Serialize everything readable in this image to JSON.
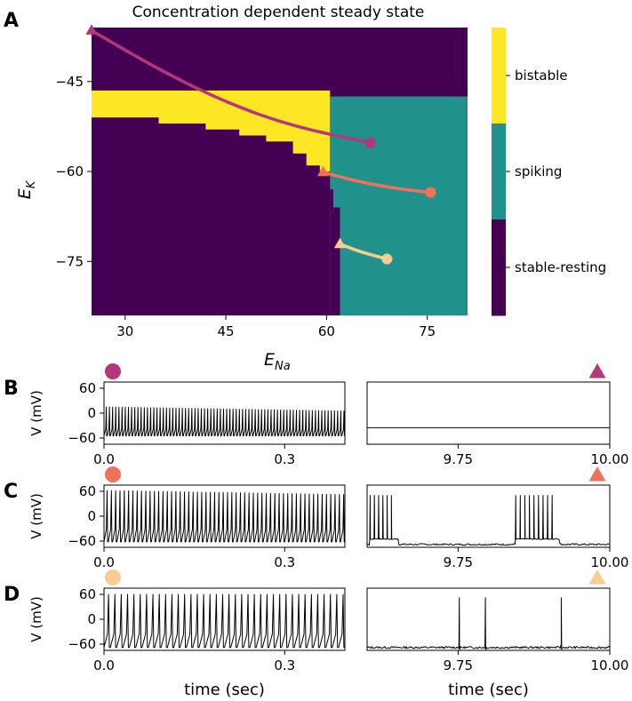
{
  "chart_data": [
    {
      "type": "heatmap",
      "panel_label": "A",
      "title": "Concentration dependent steady state",
      "xlabel": "E",
      "xlabel_sub": "Na",
      "ylabel": "E",
      "ylabel_sub": "K",
      "xlim": [
        25,
        81
      ],
      "ylim": [
        -84,
        -36
      ],
      "xticks": [
        30,
        45,
        60,
        75
      ],
      "xtick_labels": [
        "30",
        "45",
        "60",
        "75"
      ],
      "yticks": [
        -45,
        -60,
        -75
      ],
      "ytick_labels": [
        "−45",
        "−60",
        "−75"
      ],
      "categories": [
        "stable-resting",
        "spiking",
        "bistable"
      ],
      "colorbar_labels": [
        "bistable",
        "spiking",
        "stable-resting"
      ],
      "colors": {
        "stable-resting": "#440154",
        "spiking": "#21918c",
        "bistable": "#fde725"
      },
      "regions": {
        "spiking_box": {
          "x": [
            60.5,
            81
          ],
          "y": [
            -84,
            -47.5
          ]
        },
        "bistable_polygon": [
          [
            25,
            -46.5
          ],
          [
            60.5,
            -46.5
          ],
          [
            60.5,
            -60
          ],
          [
            59,
            -60
          ],
          [
            59,
            -59
          ],
          [
            57,
            -59
          ],
          [
            57,
            -57
          ],
          [
            55,
            -57
          ],
          [
            55,
            -55
          ],
          [
            51,
            -55
          ],
          [
            51,
            -54
          ],
          [
            47,
            -54
          ],
          [
            47,
            -53
          ],
          [
            42,
            -53
          ],
          [
            42,
            -52
          ],
          [
            35,
            -52
          ],
          [
            35,
            -51
          ],
          [
            25,
            -51
          ]
        ],
        "resting_notch": [
          [
            60.5,
            -60
          ],
          [
            60.5,
            -84
          ],
          [
            62,
            -84
          ],
          [
            62,
            -66
          ],
          [
            61,
            -66
          ],
          [
            61,
            -63
          ],
          [
            59.5,
            -63
          ],
          [
            59.5,
            -60
          ]
        ]
      },
      "trajectories": [
        {
          "name": "B",
          "color": "#b5367a",
          "points": [
            [
              25,
              -36.5
            ],
            [
              35,
              -43
            ],
            [
              45,
              -48.5
            ],
            [
              55,
              -52.5
            ],
            [
              66.5,
              -55.2
            ]
          ],
          "start_marker": "triangle",
          "end_marker": "circle"
        },
        {
          "name": "C",
          "color": "#f2715b",
          "points": [
            [
              59.5,
              -60.1
            ],
            [
              64,
              -61.5
            ],
            [
              70,
              -62.8
            ],
            [
              75.5,
              -63.5
            ]
          ],
          "start_marker": "triangle",
          "end_marker": "circle"
        },
        {
          "name": "D",
          "color": "#f8cd93",
          "points": [
            [
              62,
              -72.1
            ],
            [
              65,
              -73.4
            ],
            [
              69,
              -74.6
            ]
          ],
          "start_marker": "triangle",
          "end_marker": "circle"
        }
      ]
    },
    {
      "type": "line",
      "panel_label": "B",
      "ylabel": "V (mV)",
      "ylim": [
        -75,
        75
      ],
      "yticks": [
        60,
        0,
        -60
      ],
      "ytick_labels": [
        "60",
        "0",
        "−60"
      ],
      "marker_color": "#b5367a",
      "left": {
        "xlim": [
          0.0,
          0.4
        ],
        "xtick_labels": [
          "0.0",
          "0.3"
        ],
        "xticks": [
          0.0,
          0.3
        ],
        "pattern": "spiking",
        "spike_rate_hz": 190,
        "spike_peak_start_mv": 15,
        "spike_peak_end_mv": 5,
        "trough_mv": -55,
        "marker": "circle"
      },
      "right": {
        "xlim": [
          9.6,
          10.0
        ],
        "xtick_labels": [
          "9.75",
          "10.00"
        ],
        "xticks": [
          9.75,
          10.0
        ],
        "pattern": "flat",
        "level_mv": -35,
        "marker": "triangle"
      }
    },
    {
      "type": "line",
      "panel_label": "C",
      "ylabel": "V (mV)",
      "ylim": [
        -75,
        75
      ],
      "yticks": [
        60,
        0,
        -60
      ],
      "ytick_labels": [
        "60",
        "0",
        "−60"
      ],
      "marker_color": "#f2715b",
      "left": {
        "xlim": [
          0.0,
          0.4
        ],
        "xtick_labels": [
          "0.0",
          "0.3"
        ],
        "xticks": [
          0.0,
          0.3
        ],
        "pattern": "spiking",
        "spike_rate_hz": 140,
        "spike_peak_start_mv": 62,
        "spike_peak_end_mv": 52,
        "trough_mv": -62,
        "marker": "circle"
      },
      "right": {
        "xlim": [
          9.6,
          10.0
        ],
        "xtick_labels": [
          "9.75",
          "10.00"
        ],
        "xticks": [
          9.75,
          10.0
        ],
        "pattern": "bursts",
        "rest_mv": -68,
        "burst_trough_mv": -55,
        "spike_peak_mv": 50,
        "bursts": [
          {
            "start": 9.605,
            "end": 9.64,
            "spikes": 6
          },
          {
            "start": 9.845,
            "end": 9.905,
            "spikes": 9
          }
        ],
        "marker": "triangle"
      }
    },
    {
      "type": "line",
      "panel_label": "D",
      "ylabel": "V (mV)",
      "ylim": [
        -75,
        75
      ],
      "yticks": [
        60,
        0,
        -60
      ],
      "ytick_labels": [
        "60",
        "0",
        "−60"
      ],
      "xlabel": "time (sec)",
      "marker_color": "#f8cd93",
      "left": {
        "xlim": [
          0.0,
          0.4
        ],
        "xtick_labels": [
          "0.0",
          "0.3"
        ],
        "xticks": [
          0.0,
          0.3
        ],
        "pattern": "spiking",
        "spike_rate_hz": 95,
        "spike_peak_start_mv": 60,
        "spike_peak_end_mv": 60,
        "trough_mv": -68,
        "marker": "circle"
      },
      "right": {
        "xlim": [
          9.6,
          10.0
        ],
        "xtick_labels": [
          "9.75",
          "10.00"
        ],
        "xticks": [
          9.75,
          10.0
        ],
        "pattern": "sparse",
        "rest_mv": -68,
        "spike_peak_mv": 52,
        "spike_times": [
          9.752,
          9.795,
          9.92
        ],
        "marker": "triangle"
      }
    }
  ]
}
